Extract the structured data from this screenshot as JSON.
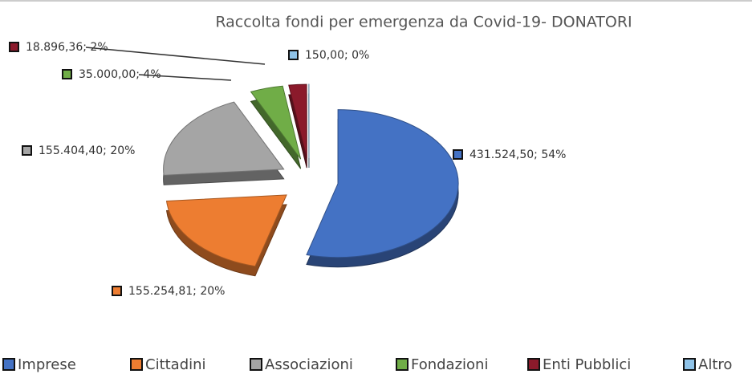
{
  "chart_data": {
    "type": "pie",
    "title": "Raccolta fondi per emergenza da Covid-19- DONATORI",
    "categories": [
      "Imprese",
      "Cittadini",
      "Associazioni",
      "Fondazioni",
      "Enti Pubblici",
      "Altro"
    ],
    "values": [
      431524.5,
      155254.81,
      155404.4,
      35000.0,
      18896.36,
      150.0
    ],
    "value_labels": [
      "431.524,50; 54%",
      "155.254,81; 20%",
      "155.404,40; 20%",
      "35.000,00; 4%",
      "18.896,36; 2%",
      "150,00; 0%"
    ],
    "colors": [
      "#4472c4",
      "#ed7d31",
      "#a5a5a5",
      "#70ad47",
      "#8b1a2b",
      "#8fc3e8"
    ],
    "legend": "bottom"
  }
}
